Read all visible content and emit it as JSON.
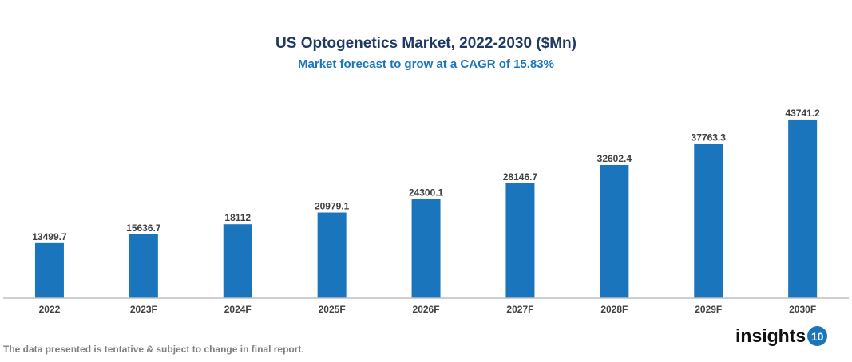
{
  "chart_data": {
    "type": "bar",
    "title": "US Optogenetics Market, 2022-2030 ($Mn)",
    "subtitle": "Market forecast to grow at a CAGR of 15.83%",
    "categories": [
      "2022",
      "2023F",
      "2024F",
      "2025F",
      "2026F",
      "2027F",
      "2028F",
      "2029F",
      "2030F"
    ],
    "values": [
      13499.7,
      15636.7,
      18112,
      20979.1,
      24300.1,
      28146.7,
      32602.4,
      37763.3,
      43741.2
    ],
    "ylim": [
      0,
      48800
    ],
    "grid": false,
    "bar_color": "#1a75bc",
    "xlabel": "",
    "ylabel": ""
  },
  "footer": {
    "note": "The data presented is tentative & subject to change in final report.",
    "logo_text": "insights",
    "logo_number": "10"
  }
}
